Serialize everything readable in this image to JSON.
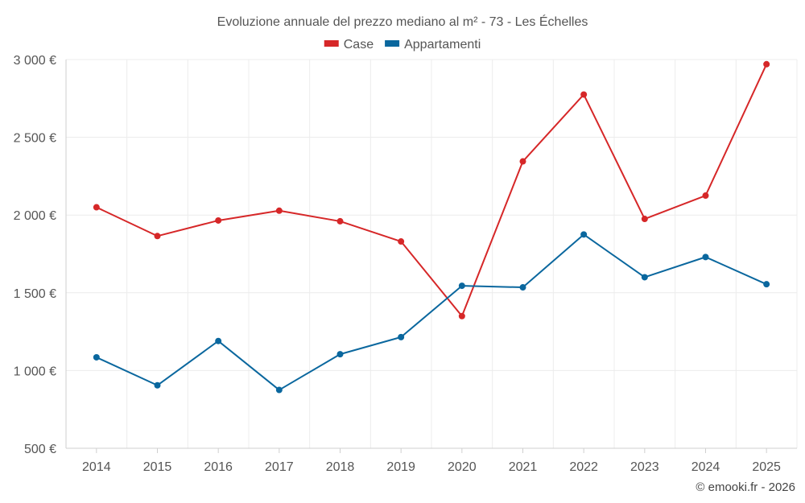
{
  "chart_data": {
    "type": "line",
    "title": "Evoluzione annuale del prezzo mediano al m² - 73 - Les Échelles",
    "categories": [
      "2014",
      "2015",
      "2016",
      "2017",
      "2018",
      "2019",
      "2020",
      "2021",
      "2022",
      "2023",
      "2024",
      "2025"
    ],
    "series": [
      {
        "name": "Case",
        "color": "#d62728",
        "values": [
          2050,
          1865,
          1965,
          2028,
          1960,
          1830,
          1350,
          2345,
          2775,
          1975,
          2125,
          2970
        ]
      },
      {
        "name": "Appartamenti",
        "color": "#0a679e",
        "values": [
          1085,
          905,
          1190,
          875,
          1105,
          1215,
          1545,
          1535,
          1875,
          1600,
          1730,
          1555
        ]
      }
    ],
    "ylim": [
      500,
      3000
    ],
    "yticks": [
      500,
      1000,
      1500,
      2000,
      2500,
      3000
    ],
    "ytick_labels": [
      "500 €",
      "1 000 €",
      "1 500 €",
      "2 000 €",
      "2 500 €",
      "3 000 €"
    ],
    "xlabel": "",
    "ylabel": "",
    "grid": true,
    "legend": "top-center"
  },
  "credit": "© emooki.fr - 2026"
}
